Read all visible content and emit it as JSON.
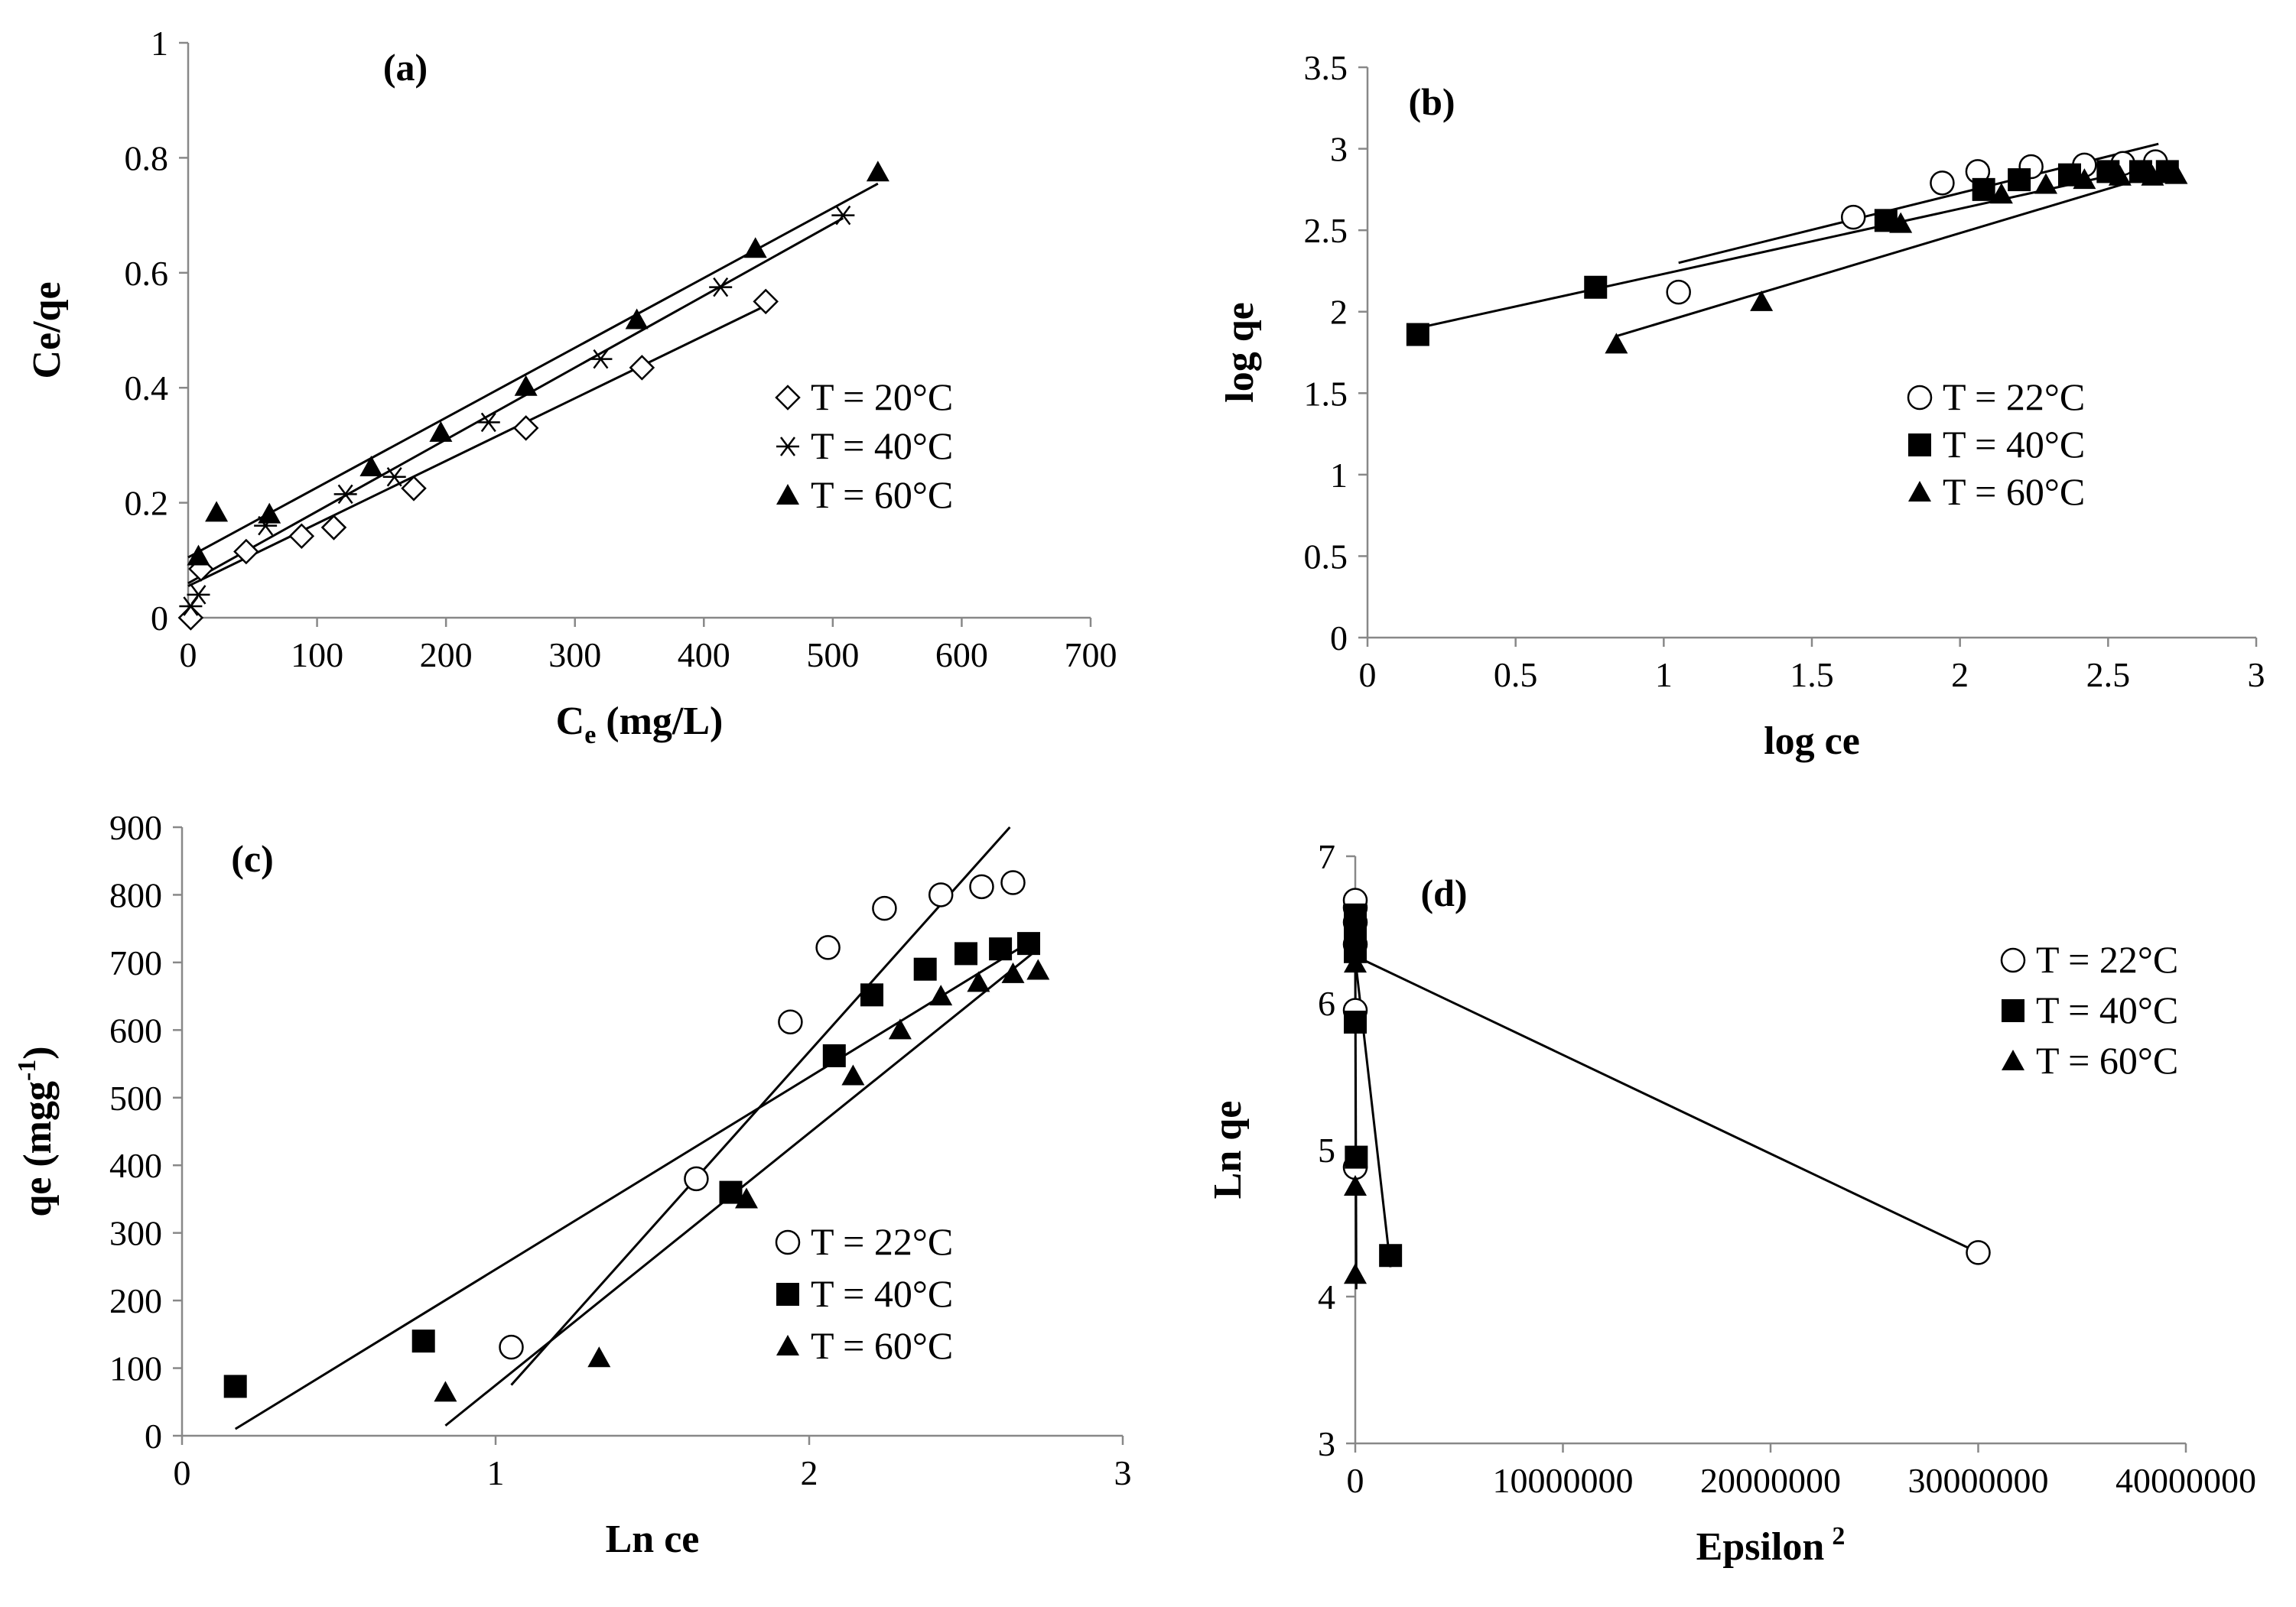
{
  "chart_data": [
    {
      "id": "a",
      "type": "scatter",
      "panel_label": "(a)",
      "xlabel_main": "C",
      "xlabel_sub": "e",
      "xlabel_rest": " (mg/L)",
      "ylabel": "Ce/qe",
      "xlim": [
        0,
        700
      ],
      "ylim": [
        0,
        1
      ],
      "xticks": [
        0,
        100,
        200,
        300,
        400,
        500,
        600,
        700
      ],
      "yticks": [
        0,
        0.2,
        0.4,
        0.6,
        0.8,
        1
      ],
      "xtick_labels": [
        "0",
        "100",
        "200",
        "300",
        "400",
        "500",
        "600",
        "700"
      ],
      "ytick_labels": [
        "0",
        "0.2",
        "0.4",
        "0.6",
        "0.8",
        "1"
      ],
      "legend_position": "right-middle",
      "series": [
        {
          "name": "T = 20°C",
          "marker": "diamond-open",
          "points": [
            [
              2,
              0.0
            ],
            [
              10,
              0.085
            ],
            [
              45,
              0.115
            ],
            [
              88,
              0.142
            ],
            [
              113,
              0.157
            ],
            [
              175,
              0.225
            ],
            [
              262,
              0.33
            ],
            [
              352,
              0.435
            ],
            [
              448,
              0.55
            ]
          ],
          "fit": [
            [
              0,
              0.055
            ],
            [
              450,
              0.545
            ]
          ]
        },
        {
          "name": "T = 40°C",
          "marker": "asterisk",
          "points": [
            [
              2,
              0.02
            ],
            [
              8,
              0.04
            ],
            [
              60,
              0.16
            ],
            [
              122,
              0.215
            ],
            [
              160,
              0.245
            ],
            [
              233,
              0.34
            ],
            [
              320,
              0.45
            ],
            [
              413,
              0.575
            ],
            [
              508,
              0.7
            ]
          ],
          "fit": [
            [
              0,
              0.06
            ],
            [
              508,
              0.695
            ]
          ]
        },
        {
          "name": "T = 60°C",
          "marker": "triangle-filled",
          "points": [
            [
              8,
              0.107
            ],
            [
              22,
              0.183
            ],
            [
              63,
              0.18
            ],
            [
              142,
              0.262
            ],
            [
              196,
              0.322
            ],
            [
              262,
              0.402
            ],
            [
              348,
              0.518
            ],
            [
              440,
              0.642
            ],
            [
              535,
              0.775
            ]
          ],
          "fit": [
            [
              0,
              0.105
            ],
            [
              535,
              0.755
            ]
          ]
        }
      ]
    },
    {
      "id": "b",
      "type": "scatter",
      "panel_label": "(b)",
      "xlabel": "log ce",
      "ylabel": "log qe",
      "xlim": [
        0,
        3
      ],
      "ylim": [
        0,
        3.5
      ],
      "xticks": [
        0,
        0.5,
        1,
        1.5,
        2,
        2.5,
        3
      ],
      "yticks": [
        0,
        0.5,
        1,
        1.5,
        2,
        2.5,
        3,
        3.5
      ],
      "xtick_labels": [
        "0",
        "0.5",
        "1",
        "1.5",
        "2",
        "2.5",
        "3"
      ],
      "ytick_labels": [
        "0",
        "0.5",
        "1",
        "1.5",
        "2",
        "2.5",
        "3",
        "3.5"
      ],
      "legend_position": "right-middle",
      "series": [
        {
          "name": "T = 22°C",
          "marker": "circle-open",
          "points": [
            [
              1.05,
              2.12
            ],
            [
              1.64,
              2.58
            ],
            [
              1.94,
              2.79
            ],
            [
              2.06,
              2.86
            ],
            [
              2.24,
              2.89
            ],
            [
              2.42,
              2.9
            ],
            [
              2.55,
              2.91
            ],
            [
              2.66,
              2.92
            ]
          ],
          "fit": [
            [
              1.05,
              2.3
            ],
            [
              2.67,
              3.03
            ]
          ]
        },
        {
          "name": "T = 40°C",
          "marker": "square-filled",
          "points": [
            [
              0.17,
              1.86
            ],
            [
              0.77,
              2.15
            ],
            [
              1.75,
              2.56
            ],
            [
              2.08,
              2.75
            ],
            [
              2.2,
              2.81
            ],
            [
              2.37,
              2.84
            ],
            [
              2.5,
              2.86
            ],
            [
              2.61,
              2.86
            ],
            [
              2.7,
              2.86
            ]
          ],
          "fit": [
            [
              0.17,
              1.9
            ],
            [
              2.72,
              2.92
            ]
          ]
        },
        {
          "name": "T = 60°C",
          "marker": "triangle-filled",
          "points": [
            [
              0.84,
              1.8
            ],
            [
              1.33,
              2.06
            ],
            [
              1.8,
              2.54
            ],
            [
              2.14,
              2.72
            ],
            [
              2.29,
              2.78
            ],
            [
              2.42,
              2.81
            ],
            [
              2.54,
              2.83
            ],
            [
              2.65,
              2.83
            ],
            [
              2.73,
              2.84
            ]
          ],
          "fit": [
            [
              0.84,
              1.85
            ],
            [
              2.73,
              2.88
            ]
          ]
        }
      ]
    },
    {
      "id": "c",
      "type": "scatter",
      "panel_label": "(c)",
      "xlabel": "Ln ce",
      "ylabel_main": "qe (mgg",
      "ylabel_sup": "-1",
      "ylabel_close": ")",
      "xlim": [
        0,
        3
      ],
      "ylim": [
        0,
        900
      ],
      "xticks": [
        0,
        1,
        2,
        3
      ],
      "yticks": [
        0,
        100,
        200,
        300,
        400,
        500,
        600,
        700,
        800,
        900
      ],
      "xtick_labels": [
        "0",
        "1",
        "2",
        "3"
      ],
      "ytick_labels": [
        "0",
        "100",
        "200",
        "300",
        "400",
        "500",
        "600",
        "700",
        "800",
        "900"
      ],
      "legend_position": "right-bottom",
      "series": [
        {
          "name": "T = 22°C",
          "marker": "circle-open",
          "points": [
            [
              1.05,
              131
            ],
            [
              1.64,
              380
            ],
            [
              1.94,
              612
            ],
            [
              2.06,
              722
            ],
            [
              2.24,
              780
            ],
            [
              2.42,
              800
            ],
            [
              2.55,
              812
            ],
            [
              2.65,
              818
            ]
          ],
          "fit": [
            [
              1.05,
              75
            ],
            [
              2.64,
              900
            ]
          ]
        },
        {
          "name": "T = 40°C",
          "marker": "square-filled",
          "points": [
            [
              0.17,
              73
            ],
            [
              0.77,
              140
            ],
            [
              1.75,
              360
            ],
            [
              2.08,
              562
            ],
            [
              2.2,
              652
            ],
            [
              2.37,
              690
            ],
            [
              2.5,
              713
            ],
            [
              2.61,
              720
            ],
            [
              2.7,
              728
            ]
          ],
          "fit": [
            [
              0.17,
              10
            ],
            [
              2.72,
              735
            ]
          ]
        },
        {
          "name": "T = 60°C",
          "marker": "triangle-filled",
          "points": [
            [
              0.84,
              64
            ],
            [
              1.33,
              115
            ],
            [
              1.8,
              350
            ],
            [
              2.14,
              532
            ],
            [
              2.29,
              600
            ],
            [
              2.42,
              650
            ],
            [
              2.54,
              670
            ],
            [
              2.65,
              683
            ],
            [
              2.73,
              688
            ]
          ],
          "fit": [
            [
              0.84,
              15
            ],
            [
              2.73,
              720
            ]
          ]
        }
      ]
    },
    {
      "id": "d",
      "type": "scatter",
      "panel_label": "(d)",
      "xlabel": "Epsilon",
      "xlabel_sup": "2",
      "ylabel": "Ln qe",
      "xlim": [
        0,
        40000000
      ],
      "ylim": [
        3,
        7
      ],
      "xticks": [
        0,
        10000000,
        20000000,
        30000000,
        40000000
      ],
      "yticks": [
        3,
        4,
        5,
        6,
        7
      ],
      "xtick_labels": [
        "0",
        "10000000",
        "20000000",
        "30000000",
        "40000000"
      ],
      "ytick_labels": [
        "3",
        "4",
        "5",
        "6",
        "7"
      ],
      "legend_position": "top-right",
      "series": [
        {
          "name": "T = 22°C",
          "marker": "circle-open",
          "points": [
            [
              30000000,
              4.3
            ],
            [
              0,
              4.88
            ],
            [
              0,
              5.95
            ],
            [
              0,
              6.4
            ],
            [
              0,
              6.55
            ],
            [
              0,
              6.65
            ],
            [
              0,
              6.7
            ]
          ],
          "fit": [
            [
              0,
              6.32
            ],
            [
              30000000,
              4.3
            ]
          ]
        },
        {
          "name": "T = 40°C",
          "marker": "square-filled",
          "points": [
            [
              1700000,
              4.28
            ],
            [
              50000,
              4.95
            ],
            [
              0,
              5.87
            ],
            [
              0,
              6.35
            ],
            [
              0,
              6.45
            ],
            [
              0,
              6.55
            ],
            [
              0,
              6.6
            ]
          ],
          "fit": [
            [
              0,
              6.3
            ],
            [
              1700000,
              4.2
            ]
          ]
        },
        {
          "name": "T = 60°C",
          "marker": "triangle-filled",
          "points": [
            [
              0,
              4.15
            ],
            [
              0,
              4.75
            ],
            [
              0,
              6.27
            ],
            [
              0,
              6.4
            ],
            [
              0,
              6.5
            ]
          ],
          "fit": [
            [
              0,
              6.3
            ],
            [
              50000,
              4.05
            ]
          ]
        }
      ]
    }
  ]
}
